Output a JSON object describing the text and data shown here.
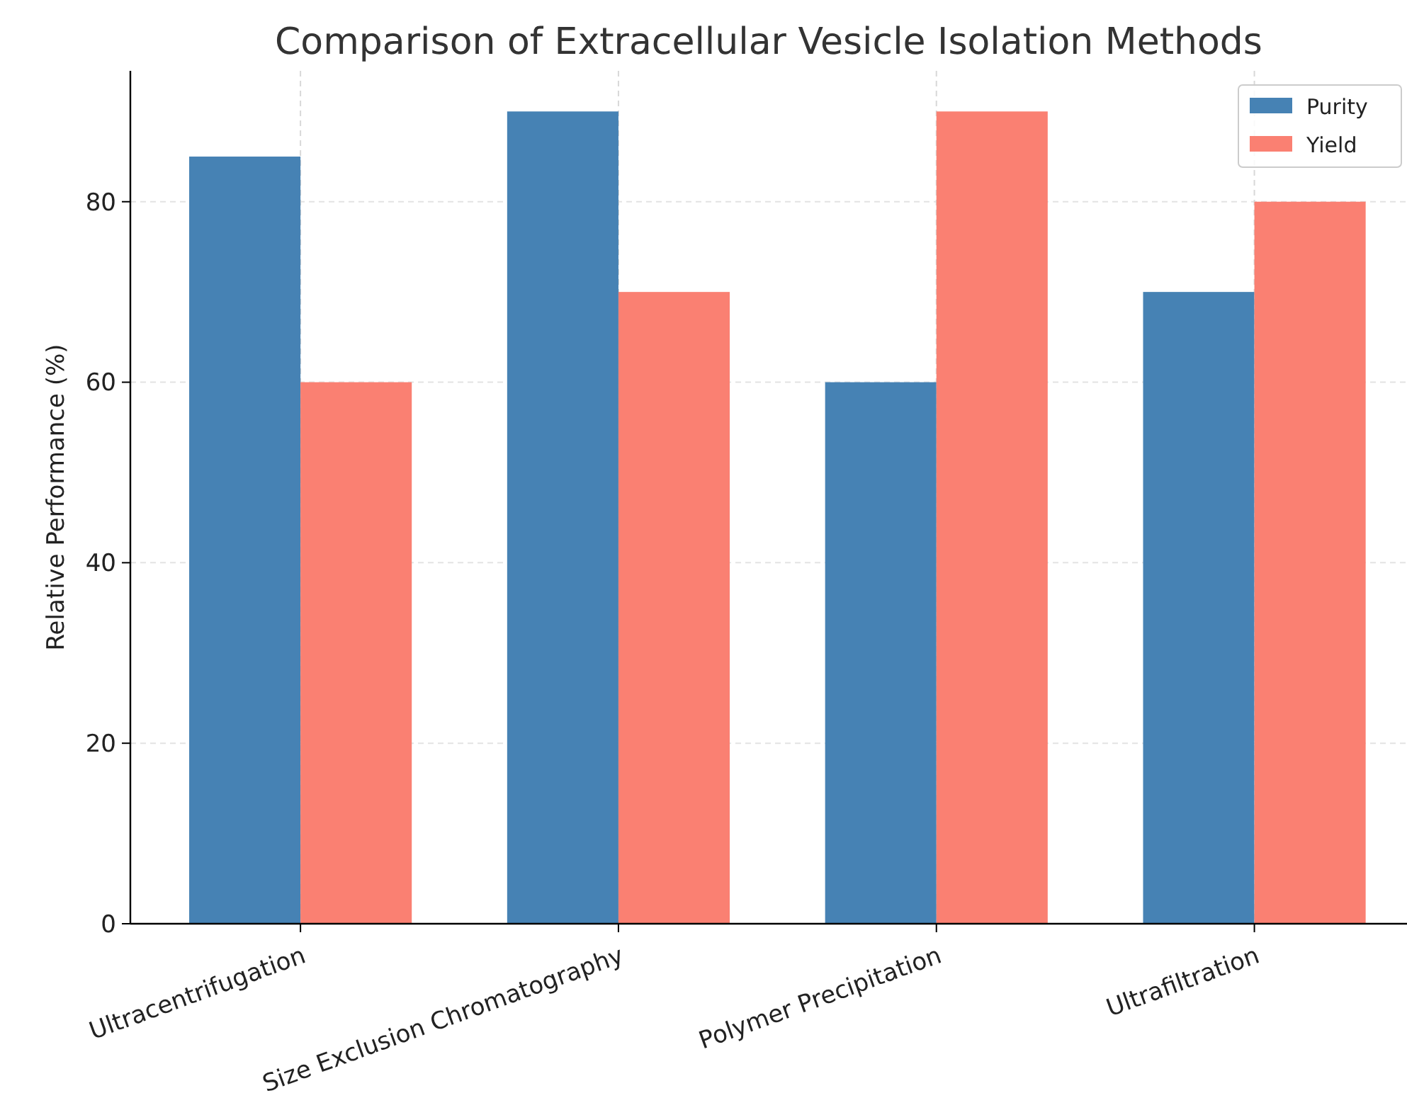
{
  "chart_data": {
    "type": "bar",
    "title": "Comparison of Extracellular Vesicle Isolation Methods",
    "ylabel": "Relative Performance (%)",
    "categories": [
      "Ultracentrifugation",
      "Size Exclusion Chromatography",
      "Polymer Precipitation",
      "Ultrafiltration"
    ],
    "series": [
      {
        "name": "Purity",
        "color": "#4682b4",
        "values": [
          85,
          90,
          60,
          70
        ]
      },
      {
        "name": "Yield",
        "color": "#fa8072",
        "values": [
          60,
          70,
          90,
          80
        ]
      }
    ],
    "ylim": [
      0,
      94.5
    ],
    "yticks": [
      0,
      20,
      40,
      60,
      80
    ],
    "grid": true,
    "legend": "top right"
  }
}
